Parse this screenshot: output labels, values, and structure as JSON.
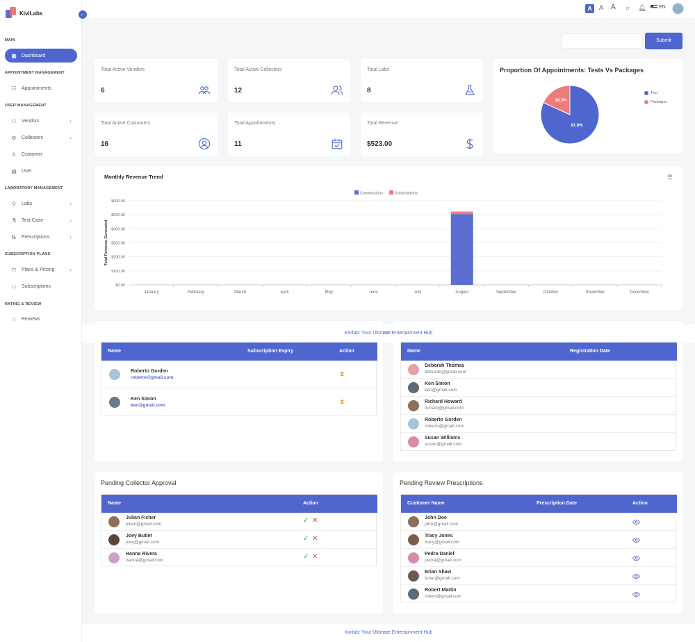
{
  "app": {
    "logo_text": "KiviLabs"
  },
  "sidebar": {
    "sections": {
      "main": "MAIN",
      "appointment": "APPOINTMENT MANAGEMENT",
      "user": "USER MANAGEMENT",
      "lab": "LABORATORY MANAGEMENT",
      "subscription": "SUBSCRIPTION PLANS",
      "rating": "RATING & REVIEW"
    },
    "items": {
      "dashboard": "Dashboard",
      "appointments": "Appointments",
      "vendors": "Vendors",
      "collectors": "Collectors",
      "customer": "Customer",
      "user": "User",
      "labs": "Labs",
      "testcase": "Test Case",
      "prescriptions": "Prescriptions",
      "plans": "Plans & Pricing",
      "subscriptions": "Subscriptions",
      "reviews": "Reviews"
    }
  },
  "topbar": {
    "font_small": "A",
    "font_mid": "A",
    "font_large": "A",
    "lang": "EN"
  },
  "search": {
    "submit_label": "Submit"
  },
  "stats": {
    "vendors": {
      "label": "Total Active Vendors",
      "value": "6"
    },
    "collectors": {
      "label": "Total Active Collectors",
      "value": "12"
    },
    "labs": {
      "label": "Total Labs",
      "value": "8"
    },
    "customers": {
      "label": "Total Active Customers",
      "value": "16"
    },
    "appointments": {
      "label": "Total Appointments",
      "value": "11"
    },
    "revenue": {
      "label": "Total Revenue",
      "value": "$523.00"
    }
  },
  "pie": {
    "title": "Proportion Of Appointments: Tests Vs Packages",
    "legend_test": "Test",
    "legend_packages": "Packages",
    "label_test": "81.8%",
    "label_packages": "18.2%",
    "colors": {
      "test": "#4f66cf",
      "packages": "#ef7b7b"
    }
  },
  "chart_data": {
    "type": "bar",
    "title": "Monthly Revenue Trend",
    "ylabel": "Total Revenue Generated",
    "xlabel": "",
    "categories": [
      "January",
      "February",
      "March",
      "April",
      "May",
      "June",
      "July",
      "August",
      "September",
      "October",
      "November",
      "December"
    ],
    "series": [
      {
        "name": "Commissions",
        "color": "#5b6fd0",
        "values": [
          0,
          0,
          0,
          0,
          0,
          0,
          0,
          505,
          0,
          0,
          0,
          0
        ]
      },
      {
        "name": "Subscriptions",
        "color": "#ef7b7b",
        "values": [
          0,
          0,
          0,
          0,
          0,
          0,
          0,
          18,
          0,
          0,
          0,
          0
        ]
      }
    ],
    "yticks": [
      "$0.00",
      "$100.00",
      "$200.00",
      "$300.00",
      "$400.00",
      "$500.00",
      "$600.00"
    ],
    "ylim": [
      0,
      600
    ],
    "stacked": true
  },
  "footer": {
    "text": "Kivilab: Your Ultimate Entertainment Hub"
  },
  "subscriptions_table": {
    "headers": [
      "Name",
      "Subscription Expiry",
      "Action"
    ],
    "rows": [
      {
        "name": "Roberto Gorden",
        "email": "roberto@gmail.com"
      },
      {
        "name": "Ken Simon",
        "email": "ken@gmail.com"
      }
    ]
  },
  "registrations_table": {
    "headers": [
      "Name",
      "Registration Date"
    ],
    "rows": [
      {
        "name": "Deborah Thomas",
        "email": "deborah@gmail.com"
      },
      {
        "name": "Ken Simon",
        "email": "ken@gmail.com"
      },
      {
        "name": "Richard Howard",
        "email": "richard@gmail.com"
      },
      {
        "name": "Roberto Gorden",
        "email": "roberto@gmail.com"
      },
      {
        "name": "Susan Williams",
        "email": "susan@gmail.com"
      }
    ]
  },
  "collector_approval": {
    "title": "Pending Collector Approval",
    "headers": [
      "Name",
      "Action"
    ],
    "rows": [
      {
        "name": "Julian Fisher",
        "email": "julian@gmail.com"
      },
      {
        "name": "Joey Butler",
        "email": "joey@gmail.com"
      },
      {
        "name": "Hanna Rivera",
        "email": "hanna@gmail.com"
      }
    ]
  },
  "review_prescriptions": {
    "title": "Pending Review Prescriptions",
    "headers": [
      "Customer Name",
      "Prescription Date",
      "Action"
    ],
    "rows": [
      {
        "name": "John Doe",
        "email": "john@gmail.com"
      },
      {
        "name": "Tracy Jones",
        "email": "tracy@gmail.com"
      },
      {
        "name": "Pedra Daniel",
        "email": "pedra@gmail.com"
      },
      {
        "name": "Brian Shaw",
        "email": "brian@gmail.com"
      },
      {
        "name": "Robert Martin",
        "email": "robert@gmail.com"
      }
    ]
  }
}
